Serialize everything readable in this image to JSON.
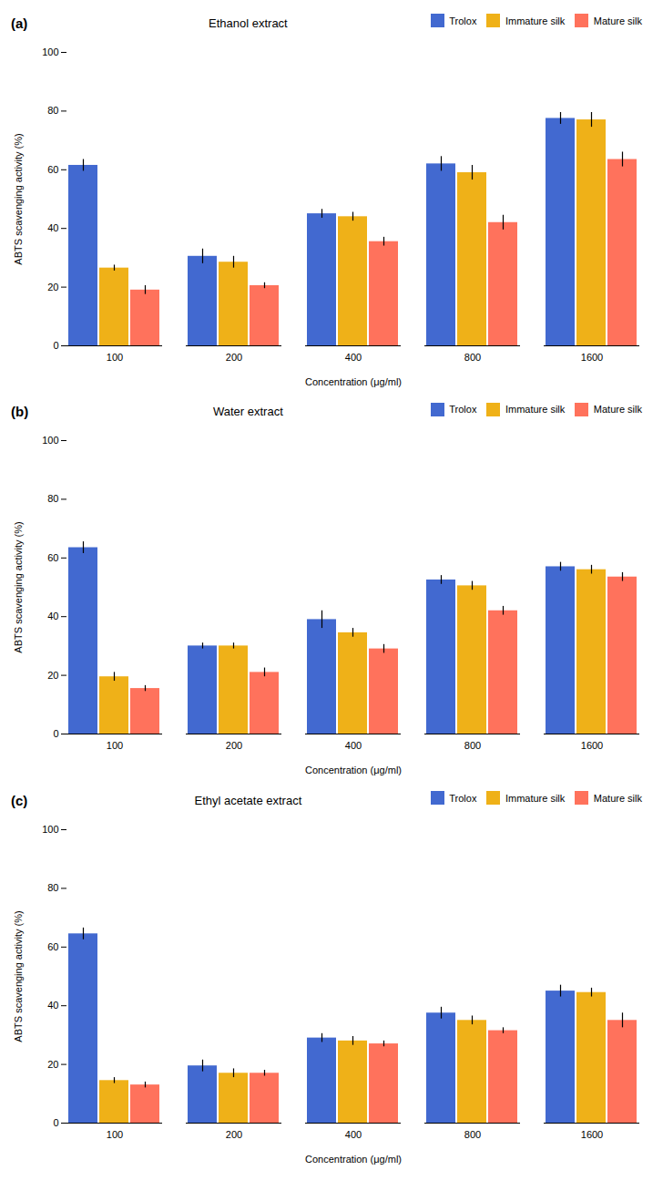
{
  "chart_data": [
    {
      "type": "bar",
      "title": "Ethanol extract",
      "annotations": [
        "(a)"
      ],
      "categories": [
        "100",
        "200",
        "400",
        "800",
        "1600"
      ],
      "series": [
        {
          "name": "Trolox",
          "values": [
            61.5,
            30.5,
            45.0,
            62.0,
            77.5
          ],
          "errors": [
            2.0,
            2.5,
            1.5,
            2.5,
            2.0
          ]
        },
        {
          "name": "Immature silk",
          "values": [
            26.5,
            28.5,
            44.0,
            59.0,
            77.0
          ],
          "errors": [
            1.0,
            2.0,
            1.5,
            2.5,
            2.5
          ]
        },
        {
          "name": "Mature silk",
          "values": [
            19.0,
            20.5,
            35.5,
            42.0,
            63.5
          ],
          "errors": [
            1.5,
            1.0,
            1.5,
            2.5,
            2.5
          ]
        }
      ],
      "xlabel": "Concentration (μg/ml)",
      "ylabel": "ABTS scavenging activity (%)",
      "ylim": [
        0,
        100
      ],
      "yticks": [
        0,
        20,
        40,
        60,
        80,
        100
      ],
      "grid": false,
      "legend": "upper right"
    },
    {
      "type": "bar",
      "title": "Water extract",
      "annotations": [
        "(b)"
      ],
      "categories": [
        "100",
        "200",
        "400",
        "800",
        "1600"
      ],
      "series": [
        {
          "name": "Trolox",
          "values": [
            63.5,
            30.0,
            39.0,
            52.5,
            57.0
          ],
          "errors": [
            2.0,
            1.0,
            3.0,
            1.5,
            1.5
          ]
        },
        {
          "name": "Immature silk",
          "values": [
            19.5,
            30.0,
            34.5,
            50.5,
            56.0
          ],
          "errors": [
            1.5,
            1.0,
            1.5,
            1.5,
            1.5
          ]
        },
        {
          "name": "Mature silk",
          "values": [
            15.5,
            21.0,
            29.0,
            42.0,
            53.5
          ],
          "errors": [
            1.0,
            1.5,
            1.5,
            1.5,
            1.5
          ]
        }
      ],
      "xlabel": "Concentration (μg/ml)",
      "ylabel": "ABTS scavenging activity (%)",
      "ylim": [
        0,
        100
      ],
      "yticks": [
        0,
        20,
        40,
        60,
        80,
        100
      ],
      "grid": false,
      "legend": "upper right"
    },
    {
      "type": "bar",
      "title": "Ethyl acetate extract",
      "annotations": [
        "(c)"
      ],
      "categories": [
        "100",
        "200",
        "400",
        "800",
        "1600"
      ],
      "series": [
        {
          "name": "Trolox",
          "values": [
            64.5,
            19.5,
            29.0,
            37.5,
            45.0
          ],
          "errors": [
            2.0,
            2.0,
            1.5,
            2.0,
            2.0
          ]
        },
        {
          "name": "Immature silk",
          "values": [
            14.5,
            17.0,
            28.0,
            35.0,
            44.5
          ],
          "errors": [
            1.0,
            1.5,
            1.5,
            1.5,
            1.5
          ]
        },
        {
          "name": "Mature silk",
          "values": [
            13.0,
            17.0,
            27.0,
            31.5,
            35.0
          ],
          "errors": [
            1.0,
            1.0,
            1.0,
            1.0,
            2.5
          ]
        }
      ],
      "xlabel": "Concentration (μg/ml)",
      "ylabel": "ABTS scavenging activity (%)",
      "ylim": [
        0,
        100
      ],
      "yticks": [
        0,
        20,
        40,
        60,
        80,
        100
      ],
      "grid": false,
      "legend": "upper right"
    }
  ]
}
